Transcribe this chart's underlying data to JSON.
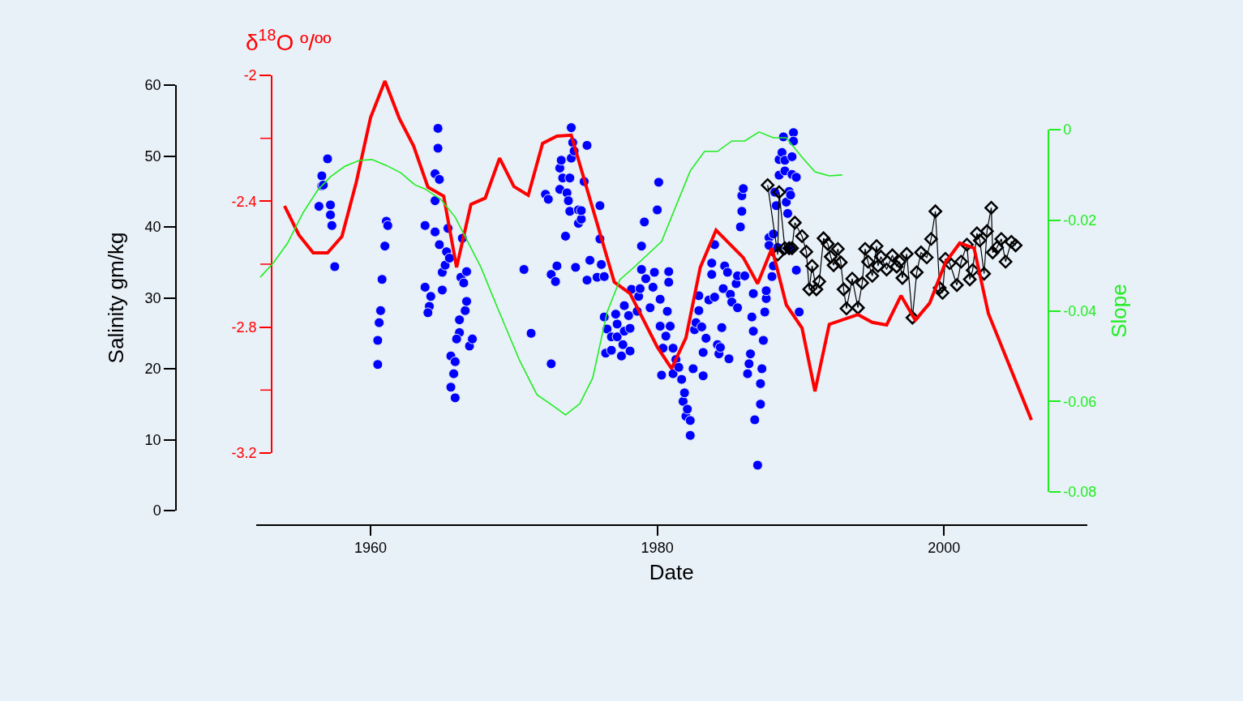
{
  "chart_data": {
    "type": "scatter",
    "xlabel": "Date",
    "ylabel": "Salinity gm/kg",
    "y2label": "δ$^{18}$O º/ºº",
    "y3label": "Slope",
    "xlim": [
      1952,
      2010
    ],
    "xticks": [
      1960,
      1980,
      2000
    ],
    "ylim": [
      0,
      60
    ],
    "yticks": [
      0,
      10,
      20,
      30,
      40,
      50,
      60
    ],
    "y2lim": [
      -3.2,
      -2
    ],
    "y2ticks": [
      -3.2,
      {
        "value": -3.0,
        "label": null
      },
      -2.8,
      {
        "value": -2.6,
        "label": null
      },
      -2.4,
      {
        "value": -2.2,
        "label": null
      },
      -2
    ],
    "y3lim": [
      -0.08,
      0
    ],
    "y3ticks": [
      -0.08,
      -0.06,
      -0.04,
      -0.02,
      0
    ],
    "grid": false,
    "series": [
      {
        "type": "scatter",
        "marker": "circle",
        "color": "#0000ff",
        "x": [
          1956.4,
          1956.6,
          1956.6,
          1956.7,
          1957.0,
          1957.2,
          1957.2,
          1957.3,
          1957.5,
          1960.5,
          1960.5,
          1960.6,
          1960.7,
          1960.8,
          1961.0,
          1961.1,
          1961.2,
          1963.8,
          1963.8,
          1964.1,
          1964.0,
          1964.2,
          1964.5,
          1964.5,
          1964.5,
          1964.7,
          1964.7,
          1964.8,
          1964.8,
          1965.0,
          1965.0,
          1965.2,
          1965.3,
          1965.4,
          1965.5,
          1965.6,
          1965.8,
          1965.6,
          1965.9,
          1965.9,
          1966.2,
          1966.0,
          1966.3,
          1966.2,
          1966.4,
          1966.5,
          1966.6,
          1966.7,
          1966.7,
          1966.9,
          1967.1,
          1970.7,
          1971.2,
          1972.2,
          1972.4,
          1972.6,
          1972.6,
          1972.9,
          1973.0,
          1973.2,
          1973.2,
          1973.3,
          1973.4,
          1973.6,
          1973.7,
          1973.8,
          1973.9,
          1973.9,
          1974.0,
          1974.0,
          1974.1,
          1974.2,
          1974.3,
          1974.5,
          1974.5,
          1974.7,
          1974.7,
          1974.9,
          1975.1,
          1975.1,
          1975.3,
          1975.8,
          1976.0,
          1976.0,
          1976.1,
          1976.3,
          1976.3,
          1976.4,
          1976.5,
          1976.8,
          1976.8,
          1977.1,
          1977.2,
          1977.2,
          1977.5,
          1977.6,
          1977.7,
          1977.7,
          1978.0,
          1978.1,
          1978.1,
          1978.2,
          1978.6,
          1978.7,
          1978.8,
          1978.9,
          1978.9,
          1979.1,
          1979.2,
          1979.5,
          1979.7,
          1979.8,
          1980.0,
          1980.1,
          1980.2,
          1980.2,
          1980.3,
          1980.4,
          1980.6,
          1980.7,
          1980.8,
          1980.8,
          1980.9,
          1981.1,
          1981.1,
          1981.3,
          1981.5,
          1981.7,
          1981.8,
          1981.9,
          1982.0,
          1982.1,
          1982.3,
          1982.3,
          1982.5,
          1982.6,
          1982.7,
          1982.9,
          1982.9,
          1983.1,
          1983.2,
          1983.2,
          1983.4,
          1983.6,
          1983.8,
          1983.8,
          1984.0,
          1984.0,
          1984.2,
          1984.3,
          1984.4,
          1984.5,
          1984.6,
          1984.7,
          1984.9,
          1985.0,
          1985.1,
          1985.2,
          1985.5,
          1985.6,
          1985.6,
          1985.8,
          1985.9,
          1985.9,
          1986.0,
          1986.1,
          1986.3,
          1986.4,
          1986.5,
          1986.6,
          1986.7,
          1986.7,
          1986.8,
          1987.0,
          1987.2,
          1987.2,
          1987.3,
          1987.4,
          1987.5,
          1987.6,
          1987.6,
          1987.8,
          1987.8,
          1988.0,
          1988.1,
          1988.1,
          1988.2,
          1988.3,
          1988.4,
          1988.5,
          1988.5,
          1988.7,
          1988.8,
          1988.9,
          1988.9,
          1989.0,
          1989.1,
          1989.2,
          1989.2,
          1989.3,
          1989.4,
          1989.4,
          1989.5,
          1989.5,
          1989.7,
          1989.7,
          1989.9
        ],
        "values": [
          42.9,
          47.2,
          45.8,
          45.9,
          49.6,
          43.1,
          41.7,
          40.2,
          34.4,
          20.6,
          24.0,
          26.5,
          28.2,
          32.6,
          37.3,
          40.8,
          40.2,
          31.5,
          40.2,
          28.8,
          27.9,
          30.2,
          39.3,
          43.7,
          47.5,
          53.9,
          51.1,
          46.7,
          37.5,
          31.1,
          33.6,
          34.6,
          36.5,
          39.8,
          35.6,
          21.8,
          19.3,
          17.4,
          15.9,
          21.0,
          25.1,
          24.2,
          32.9,
          26.9,
          38.4,
          32.1,
          28.2,
          29.5,
          33.7,
          23.2,
          24.2,
          34.0,
          25.0,
          44.6,
          43.9,
          33.3,
          20.7,
          32.3,
          34.5,
          48.3,
          45.3,
          49.4,
          46.9,
          38.7,
          44.8,
          43.7,
          46.9,
          42.2,
          49.7,
          54.0,
          51.9,
          50.7,
          34.3,
          42.4,
          40.5,
          41.1,
          42.3,
          46.4,
          51.5,
          32.5,
          35.3,
          32.9,
          43.0,
          38.3,
          34.7,
          33.0,
          27.3,
          22.2,
          25.6,
          24.5,
          22.6,
          27.7,
          26.3,
          24.5,
          21.8,
          23.4,
          25.3,
          28.9,
          27.5,
          22.5,
          25.7,
          31.2,
          28.1,
          30.2,
          31.3,
          34.0,
          37.3,
          40.7,
          32.7,
          28.6,
          31.5,
          33.6,
          42.4,
          46.3,
          26.0,
          29.8,
          19.1,
          22.9,
          24.6,
          28.1,
          33.7,
          32.2,
          26.0,
          22.9,
          19.3,
          21.3,
          20.2,
          18.5,
          15.4,
          16.6,
          13.3,
          14.3,
          12.7,
          10.6,
          20.0,
          25.5,
          26.5,
          28.2,
          30.3,
          25.9,
          22.3,
          19.0,
          24.3,
          29.7,
          33.3,
          34.9,
          37.5,
          30.1,
          23.4,
          22.1,
          23.0,
          25.8,
          31.3,
          34.5,
          33.6,
          21.4,
          30.5,
          29.4,
          32.0,
          28.6,
          33.1,
          40.0,
          42.2,
          44.4,
          45.4,
          33.1,
          19.3,
          20.7,
          22.1,
          27.3,
          30.6,
          25.3,
          12.8,
          6.4,
          15.0,
          17.9,
          20.0,
          24.0,
          28.0,
          29.9,
          31.0,
          38.5,
          37.4,
          33.0,
          39.0,
          34.5,
          44.9,
          43.0,
          37.1,
          49.5,
          47.3,
          50.5,
          52.7,
          49.4,
          47.9,
          43.5,
          41.9,
          36.8,
          45.0,
          44.5,
          47.4,
          49.9,
          53.3,
          52.1,
          47.0,
          33.9,
          28.0
        ]
      },
      {
        "type": "line",
        "marker": "diamond",
        "line_style": "solid",
        "color": "#000000",
        "x": [
          1987.7,
          1988.4,
          1988.5,
          1988.9,
          1989.2,
          1989.4,
          1989.6,
          1990.1,
          1990.4,
          1990.6,
          1990.8,
          1991.1,
          1991.3,
          1991.6,
          1991.9,
          1992.1,
          1992.3,
          1992.6,
          1992.8,
          1993.0,
          1993.2,
          1993.6,
          1994.0,
          1994.3,
          1994.5,
          1994.7,
          1995.0,
          1995.3,
          1995.4,
          1995.6,
          1996.0,
          1996.4,
          1996.7,
          1996.9,
          1997.1,
          1997.4,
          1997.8,
          1998.1,
          1998.4,
          1998.8,
          1999.1,
          1999.4,
          1999.7,
          1999.9,
          2000.1,
          2000.4,
          2000.9,
          2001.2,
          2001.6,
          2001.8,
          2002.0,
          2002.3,
          2002.5,
          2002.8,
          2003.0,
          2003.3,
          2003.4,
          2003.7,
          2004.0,
          2004.3,
          2004.7,
          2005.0
        ],
        "values": [
          45.9,
          36.1,
          44.9,
          37.0,
          37.0,
          37.0,
          40.6,
          38.7,
          36.5,
          31.2,
          34.5,
          31.2,
          32.3,
          38.4,
          37.6,
          35.8,
          34.6,
          36.9,
          35.0,
          31.2,
          28.5,
          32.7,
          28.6,
          32.1,
          36.9,
          35.1,
          33.1,
          37.3,
          34.5,
          35.8,
          34.0,
          36.0,
          34.4,
          35.1,
          32.8,
          36.2,
          27.2,
          33.6,
          36.4,
          35.7,
          38.3,
          42.2,
          31.4,
          30.7,
          35.5,
          34.9,
          31.8,
          35.1,
          37.5,
          32.6,
          33.9,
          39.1,
          38.1,
          33.4,
          39.4,
          42.7,
          36.4,
          37.1,
          38.3,
          35.1,
          37.9,
          37.4
        ]
      },
      {
        "type": "line",
        "axis": "y2",
        "marker": "none",
        "line_style": "solid",
        "color": "#ff0000",
        "x": [
          1954.0,
          1955.0,
          1956.0,
          1957.0,
          1958.0,
          1959.0,
          1960.0,
          1961.0,
          1962.0,
          1963.0,
          1964.0,
          1965.1,
          1966.0,
          1967.0,
          1968.0,
          1969.0,
          1970.0,
          1971.0,
          1972.0,
          1973.0,
          1974.0,
          1977.0,
          1978.1,
          1980.0,
          1981.0,
          1982.0,
          1983.0,
          1984.1,
          1986.0,
          1987.0,
          1988.0,
          1989.0,
          1990.1,
          1991.0,
          1992.0,
          1994.0,
          1995.0,
          1996.0,
          1997.0,
          1998.0,
          1999.0,
          2000.1,
          2001.1,
          2002.1,
          2003.1,
          2006.1
        ],
        "values": [
          -2.415,
          -2.507,
          -2.564,
          -2.564,
          -2.512,
          -2.34,
          -2.134,
          -2.018,
          -2.136,
          -2.224,
          -2.355,
          -2.384,
          -2.61,
          -2.41,
          -2.39,
          -2.263,
          -2.353,
          -2.381,
          -2.216,
          -2.193,
          -2.19,
          -2.657,
          -2.693,
          -2.863,
          -2.932,
          -2.834,
          -2.61,
          -2.492,
          -2.579,
          -2.662,
          -2.549,
          -2.729,
          -2.803,
          -3.004,
          -2.791,
          -2.76,
          -2.785,
          -2.793,
          -2.7,
          -2.778,
          -2.724,
          -2.595,
          -2.533,
          -2.549,
          -2.757,
          -3.095
        ]
      },
      {
        "type": "line",
        "axis": "y3",
        "marker": "none",
        "line_style": "solid",
        "color": "#1fee1f",
        "x": [
          1952.3,
          1953.2,
          1954.2,
          1955.3,
          1956.3,
          1957.2,
          1958.2,
          1959.2,
          1960.1,
          1961.1,
          1962.1,
          1963.1,
          1963.8,
          1964.9,
          1965.9,
          1967.7,
          1968.9,
          1970.4,
          1971.6,
          1972.7,
          1973.6,
          1974.6,
          1975.5,
          1976.5,
          1977.4,
          1978.3,
          1980.3,
          1982.3,
          1983.3,
          1984.2,
          1985.2,
          1986.1,
          1987.1,
          1988.1,
          1989.0,
          1990.1,
          1991.0,
          1992.0,
          1992.9
        ],
        "values": [
          -0.0326,
          -0.0295,
          -0.0251,
          -0.0183,
          -0.0134,
          -0.0104,
          -0.0081,
          -0.0068,
          -0.0066,
          -0.0079,
          -0.0095,
          -0.0122,
          -0.0131,
          -0.0154,
          -0.0193,
          -0.0304,
          -0.0397,
          -0.051,
          -0.0585,
          -0.0609,
          -0.063,
          -0.0605,
          -0.0548,
          -0.0403,
          -0.0331,
          -0.0306,
          -0.0247,
          -0.0091,
          -0.0048,
          -0.0048,
          -0.0025,
          -0.0025,
          -0.0005,
          -0.0018,
          -0.0018,
          -0.0061,
          -0.0093,
          -0.0102,
          -0.01
        ]
      }
    ]
  }
}
